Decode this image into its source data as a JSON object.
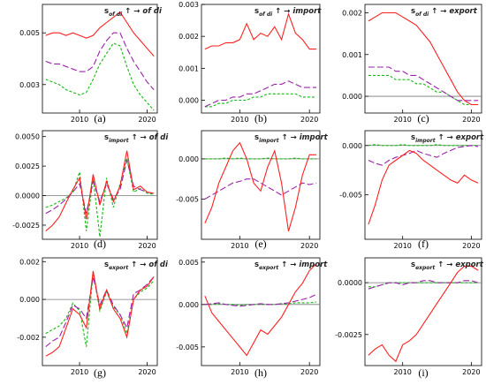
{
  "figure": {
    "colors": {
      "series_a": "#ff2020",
      "series_b": "#9a22aa",
      "series_c": "#14b814",
      "zero_line": "#7a7a7a"
    },
    "arrow": "↑ →"
  },
  "chart_data": [
    {
      "type": "line",
      "caption": "(a)",
      "title": {
        "s": "s",
        "sub": "of di",
        "arrow": "↑ →",
        "rest": "of di"
      },
      "xlim": [
        2004.5,
        2021.5
      ],
      "ylim": [
        0.0019,
        0.0061
      ],
      "xticks": [
        "2010",
        "2020"
      ],
      "yticks": [
        "0.005",
        "0.003"
      ],
      "zero_line": false,
      "x": [
        2005,
        2006,
        2007,
        2008,
        2009,
        2010,
        2011,
        2012,
        2013,
        2014,
        2015,
        2016,
        2017,
        2018,
        2019,
        2020,
        2021
      ],
      "series": [
        {
          "style": "solid",
          "values": [
            0.0049,
            0.005,
            0.005,
            0.0049,
            0.005,
            0.0049,
            0.0048,
            0.0049,
            0.0052,
            0.0054,
            0.0056,
            0.0058,
            0.0054,
            0.005,
            0.0047,
            0.0044,
            0.0041
          ]
        },
        {
          "style": "dashed",
          "values": [
            0.0039,
            0.0038,
            0.0038,
            0.0037,
            0.0036,
            0.0035,
            0.0035,
            0.0037,
            0.0043,
            0.0047,
            0.005,
            0.005,
            0.0044,
            0.0039,
            0.0035,
            0.0031,
            0.0028
          ]
        },
        {
          "style": "dotted",
          "values": [
            0.0032,
            0.0031,
            0.003,
            0.0028,
            0.0027,
            0.0026,
            0.0027,
            0.0032,
            0.0038,
            0.0042,
            0.0046,
            0.0045,
            0.0037,
            0.003,
            0.0026,
            0.0023,
            0.002
          ]
        }
      ]
    },
    {
      "type": "line",
      "caption": "(b)",
      "title": {
        "s": "s",
        "sub": "of di",
        "arrow": "↑ →",
        "rest": "import"
      },
      "xlim": [
        2004.5,
        2021.5
      ],
      "ylim": [
        -0.0004,
        0.003
      ],
      "xticks": [
        "2010",
        "2020"
      ],
      "yticks": [
        "0.003",
        "0.002",
        "0.001",
        "0.000"
      ],
      "zero_line": false,
      "x": [
        2005,
        2006,
        2007,
        2008,
        2009,
        2010,
        2011,
        2012,
        2013,
        2014,
        2015,
        2016,
        2017,
        2018,
        2019,
        2020,
        2021
      ],
      "series": [
        {
          "style": "solid",
          "values": [
            0.0016,
            0.0017,
            0.0017,
            0.0018,
            0.0018,
            0.0019,
            0.0024,
            0.0019,
            0.0021,
            0.002,
            0.0023,
            0.0019,
            0.0027,
            0.0021,
            0.0019,
            0.0016,
            0.0016
          ]
        },
        {
          "style": "dashed",
          "values": [
            -0.0002,
            -0.0001,
            0.0,
            0.0,
            0.0001,
            0.0001,
            0.0002,
            0.0002,
            0.0003,
            0.0004,
            0.0005,
            0.0005,
            0.0006,
            0.0005,
            0.0004,
            0.0004,
            0.0004
          ]
        },
        {
          "style": "dotted",
          "values": [
            -0.0002,
            -0.0002,
            -0.0001,
            -0.0001,
            0.0,
            0.0,
            0.0,
            0.0001,
            0.0001,
            0.0002,
            0.0002,
            0.0002,
            0.0002,
            0.0002,
            0.0001,
            0.0001,
            0.0001
          ]
        }
      ]
    },
    {
      "type": "line",
      "caption": "(c)",
      "title": {
        "s": "s",
        "sub": "of di",
        "arrow": "↑ →",
        "rest": "export"
      },
      "xlim": [
        2004.5,
        2021.5
      ],
      "ylim": [
        -0.0004,
        0.0022
      ],
      "xticks": [
        "2010",
        "2020"
      ],
      "yticks": [
        "0.002",
        "0.001",
        "0.000"
      ],
      "zero_line": true,
      "x": [
        2005,
        2006,
        2007,
        2008,
        2009,
        2010,
        2011,
        2012,
        2013,
        2014,
        2015,
        2016,
        2017,
        2018,
        2019,
        2020,
        2021
      ],
      "series": [
        {
          "style": "solid",
          "values": [
            0.0018,
            0.0019,
            0.002,
            0.002,
            0.002,
            0.0019,
            0.0018,
            0.0017,
            0.0015,
            0.0013,
            0.001,
            0.0007,
            0.0004,
            0.0001,
            -0.0001,
            -0.0002,
            -0.0002
          ]
        },
        {
          "style": "dashed",
          "values": [
            0.0007,
            0.0007,
            0.0007,
            0.0007,
            0.0006,
            0.0006,
            0.0005,
            0.0005,
            0.0004,
            0.0003,
            0.0002,
            0.0001,
            0.0,
            -0.0001,
            -0.0001,
            -0.0001,
            -0.0001
          ]
        },
        {
          "style": "dotted",
          "values": [
            0.0005,
            0.0005,
            0.0005,
            0.0005,
            0.0004,
            0.0004,
            0.0004,
            0.0003,
            0.0003,
            0.0002,
            0.0001,
            0.0001,
            0.0,
            -0.0001,
            -0.0002,
            -0.0002,
            -0.0002
          ]
        }
      ]
    },
    {
      "type": "line",
      "caption": "(d)",
      "title": {
        "s": "s",
        "sub": "import",
        "arrow": "↑ →",
        "rest": "of di"
      },
      "xlim": [
        2004.5,
        2021.5
      ],
      "ylim": [
        -0.0037,
        0.0055
      ],
      "xticks": [
        "2010",
        "2020"
      ],
      "yticks": [
        "0.0050",
        "0.0025",
        "0.0000",
        "-0.0025"
      ],
      "zero_line": true,
      "x": [
        2005,
        2006,
        2007,
        2008,
        2009,
        2010,
        2011,
        2012,
        2013,
        2014,
        2015,
        2016,
        2017,
        2018,
        2019,
        2020,
        2021
      ],
      "series": [
        {
          "style": "solid",
          "values": [
            -0.003,
            -0.0025,
            -0.0018,
            -0.0006,
            0.0005,
            0.0015,
            -0.002,
            0.0018,
            -0.0008,
            0.0012,
            -0.0005,
            0.0008,
            0.0038,
            0.0005,
            0.0008,
            0.0003,
            0.0002
          ]
        },
        {
          "style": "dashed",
          "values": [
            -0.0015,
            -0.0012,
            -0.0008,
            -0.0003,
            0.0003,
            0.001,
            -0.0015,
            0.0012,
            -0.0005,
            0.001,
            -0.0003,
            0.0005,
            0.003,
            0.0008,
            0.0005,
            0.0003,
            0.0002
          ]
        },
        {
          "style": "dotted",
          "values": [
            -0.001,
            -0.0008,
            -0.0005,
            -0.0002,
            0.0003,
            0.002,
            -0.003,
            0.0015,
            -0.0035,
            0.0015,
            -0.001,
            0.001,
            0.0032,
            0.0003,
            0.0006,
            0.0002,
            0.0001
          ]
        }
      ]
    },
    {
      "type": "line",
      "caption": "(e)",
      "title": {
        "s": "s",
        "sub": "import",
        "arrow": "↑ →",
        "rest": "import"
      },
      "xlim": [
        2004.5,
        2021.5
      ],
      "ylim": [
        -0.01,
        0.0035
      ],
      "xticks": [
        "2010",
        "2020"
      ],
      "yticks": [
        "0.000",
        "-0.005"
      ],
      "zero_line": true,
      "x": [
        2005,
        2006,
        2007,
        2008,
        2009,
        2010,
        2011,
        2012,
        2013,
        2014,
        2015,
        2016,
        2017,
        2018,
        2019,
        2020,
        2021
      ],
      "series": [
        {
          "style": "solid",
          "values": [
            -0.008,
            -0.006,
            -0.003,
            -0.001,
            0.001,
            0.002,
            0.0,
            -0.003,
            -0.004,
            -0.001,
            0.001,
            -0.003,
            -0.009,
            -0.006,
            -0.002,
            0.0005,
            0.0005
          ]
        },
        {
          "style": "dashed",
          "values": [
            -0.005,
            -0.0045,
            -0.004,
            -0.0035,
            -0.003,
            -0.0028,
            -0.0025,
            -0.0025,
            -0.003,
            -0.0035,
            -0.004,
            -0.0045,
            -0.004,
            -0.0035,
            -0.003,
            -0.0032,
            -0.003
          ]
        },
        {
          "style": "dotted",
          "values": [
            0.0,
            0.0,
            0.0,
            0.0001,
            0.0,
            0.0001,
            0.0,
            0.0,
            0.0,
            0.0001,
            0.0,
            0.0,
            0.0,
            0.0001,
            0.0,
            0.0,
            0.0
          ]
        }
      ]
    },
    {
      "type": "line",
      "caption": "(f)",
      "title": {
        "s": "s",
        "sub": "import",
        "arrow": "↑ →",
        "rest": "export"
      },
      "xlim": [
        2004.5,
        2021.5
      ],
      "ylim": [
        -0.0095,
        0.0015
      ],
      "xticks": [
        "2010",
        "2020"
      ],
      "yticks": [
        "0.000",
        "-0.005"
      ],
      "zero_line": true,
      "x": [
        2005,
        2006,
        2007,
        2008,
        2009,
        2010,
        2011,
        2012,
        2013,
        2014,
        2015,
        2016,
        2017,
        2018,
        2019,
        2020,
        2021
      ],
      "series": [
        {
          "style": "solid",
          "values": [
            -0.008,
            -0.006,
            -0.0035,
            -0.002,
            -0.0015,
            -0.001,
            -0.0005,
            -0.0008,
            -0.0015,
            -0.002,
            -0.0025,
            -0.003,
            -0.0035,
            -0.0038,
            -0.003,
            -0.0035,
            -0.0038
          ]
        },
        {
          "style": "dashed",
          "values": [
            -0.0015,
            -0.0018,
            -0.002,
            -0.0015,
            -0.0012,
            -0.001,
            -0.0008,
            -0.0005,
            -0.0008,
            -0.001,
            -0.0012,
            -0.0008,
            -0.0005,
            -0.0002,
            -0.0001,
            0.0,
            -0.0001
          ]
        },
        {
          "style": "dotted",
          "values": [
            0.0,
            0.0001,
            0.0,
            0.0,
            0.0,
            0.0001,
            0.0,
            0.0,
            0.0,
            0.0,
            0.0001,
            0.0,
            0.0,
            0.0,
            0.0,
            0.0,
            0.0
          ]
        }
      ]
    },
    {
      "type": "line",
      "caption": "(g)",
      "title": {
        "s": "s",
        "sub": "export",
        "arrow": "↑ →",
        "rest": "of di"
      },
      "xlim": [
        2004.5,
        2021.5
      ],
      "ylim": [
        -0.0035,
        0.0022
      ],
      "xticks": [
        "2010",
        "2020"
      ],
      "yticks": [
        "0.002",
        "0.000",
        "-0.002"
      ],
      "zero_line": true,
      "x": [
        2005,
        2006,
        2007,
        2008,
        2009,
        2010,
        2011,
        2012,
        2013,
        2014,
        2015,
        2016,
        2017,
        2018,
        2019,
        2020,
        2021
      ],
      "series": [
        {
          "style": "solid",
          "values": [
            -0.003,
            -0.0028,
            -0.0025,
            -0.0015,
            -0.0005,
            -0.0008,
            -0.0015,
            0.0015,
            -0.0005,
            0.0005,
            -0.0005,
            -0.001,
            -0.002,
            0.0,
            0.0005,
            0.0007,
            0.0012
          ]
        },
        {
          "style": "dashed",
          "values": [
            -0.0025,
            -0.0022,
            -0.002,
            -0.0012,
            -0.0003,
            -0.0005,
            -0.001,
            0.0012,
            -0.0003,
            0.0005,
            -0.0003,
            -0.0008,
            -0.0015,
            0.0003,
            0.0005,
            0.0008,
            0.0012
          ]
        },
        {
          "style": "dotted",
          "values": [
            -0.0018,
            -0.0016,
            -0.0014,
            -0.001,
            -0.0002,
            -0.0006,
            -0.0025,
            0.0014,
            -0.0006,
            0.0004,
            -0.0004,
            -0.0008,
            -0.0018,
            0.0,
            0.0004,
            0.0006,
            0.001
          ]
        }
      ]
    },
    {
      "type": "line",
      "caption": "(h)",
      "title": {
        "s": "s",
        "sub": "export",
        "arrow": "↑ →",
        "rest": "import"
      },
      "xlim": [
        2004.5,
        2021.5
      ],
      "ylim": [
        -0.0072,
        0.0055
      ],
      "xticks": [
        "2010",
        "2020"
      ],
      "yticks": [
        "0.005",
        "0.000",
        "-0.005"
      ],
      "zero_line": true,
      "x": [
        2005,
        2006,
        2007,
        2008,
        2009,
        2010,
        2011,
        2012,
        2013,
        2014,
        2015,
        2016,
        2017,
        2018,
        2019,
        2020,
        2021
      ],
      "series": [
        {
          "style": "solid",
          "values": [
            0.001,
            -0.001,
            -0.002,
            -0.003,
            -0.004,
            -0.005,
            -0.006,
            -0.0045,
            -0.003,
            -0.0035,
            -0.0025,
            -0.0015,
            0.0,
            0.0015,
            0.0025,
            0.004,
            0.0048
          ]
        },
        {
          "style": "dashed",
          "values": [
            0.0,
            0.0001,
            0.0002,
            0.0,
            -0.0001,
            -0.0002,
            -0.0001,
            0.0,
            0.0001,
            0.0,
            0.0,
            0.0001,
            0.0002,
            0.0004,
            0.0006,
            0.0008,
            0.0012
          ]
        },
        {
          "style": "dotted",
          "values": [
            0.0,
            0.0,
            0.0001,
            0.0,
            0.0,
            -0.0001,
            0.0,
            0.0,
            0.0,
            0.0,
            0.0,
            0.0001,
            0.0001,
            0.0002,
            0.0002,
            0.0002,
            0.0003
          ]
        }
      ]
    },
    {
      "type": "line",
      "caption": "(i)",
      "title": {
        "s": "s",
        "sub": "export",
        "arrow": "↑ →",
        "rest": "export"
      },
      "xlim": [
        2004.5,
        2021.5
      ],
      "ylim": [
        -0.004,
        0.0012
      ],
      "xticks": [
        "2010",
        "2020"
      ],
      "yticks": [
        "0.0000",
        "-0.0025"
      ],
      "zero_line": true,
      "x": [
        2005,
        2006,
        2007,
        2008,
        2009,
        2010,
        2011,
        2012,
        2013,
        2014,
        2015,
        2016,
        2017,
        2018,
        2019,
        2020,
        2021
      ],
      "series": [
        {
          "style": "solid",
          "values": [
            -0.0035,
            -0.0032,
            -0.003,
            -0.0035,
            -0.0038,
            -0.003,
            -0.0028,
            -0.0025,
            -0.002,
            -0.0015,
            -0.001,
            -0.0005,
            0.0,
            0.0005,
            0.0008,
            0.0008,
            0.0006
          ]
        },
        {
          "style": "dashed",
          "values": [
            -0.0003,
            -0.0002,
            -0.0001,
            0.0,
            0.0,
            -0.0001,
            0.0,
            0.0,
            0.0001,
            0.0001,
            0.0,
            0.0,
            0.0,
            0.0,
            0.0001,
            0.0001,
            0.0
          ]
        },
        {
          "style": "dotted",
          "values": [
            -0.0002,
            -0.0002,
            -0.0001,
            0.0,
            0.0,
            0.0,
            0.0,
            0.0,
            0.0,
            0.0,
            0.0,
            0.0,
            0.0,
            0.0,
            0.0,
            0.0,
            0.0
          ]
        }
      ]
    }
  ]
}
